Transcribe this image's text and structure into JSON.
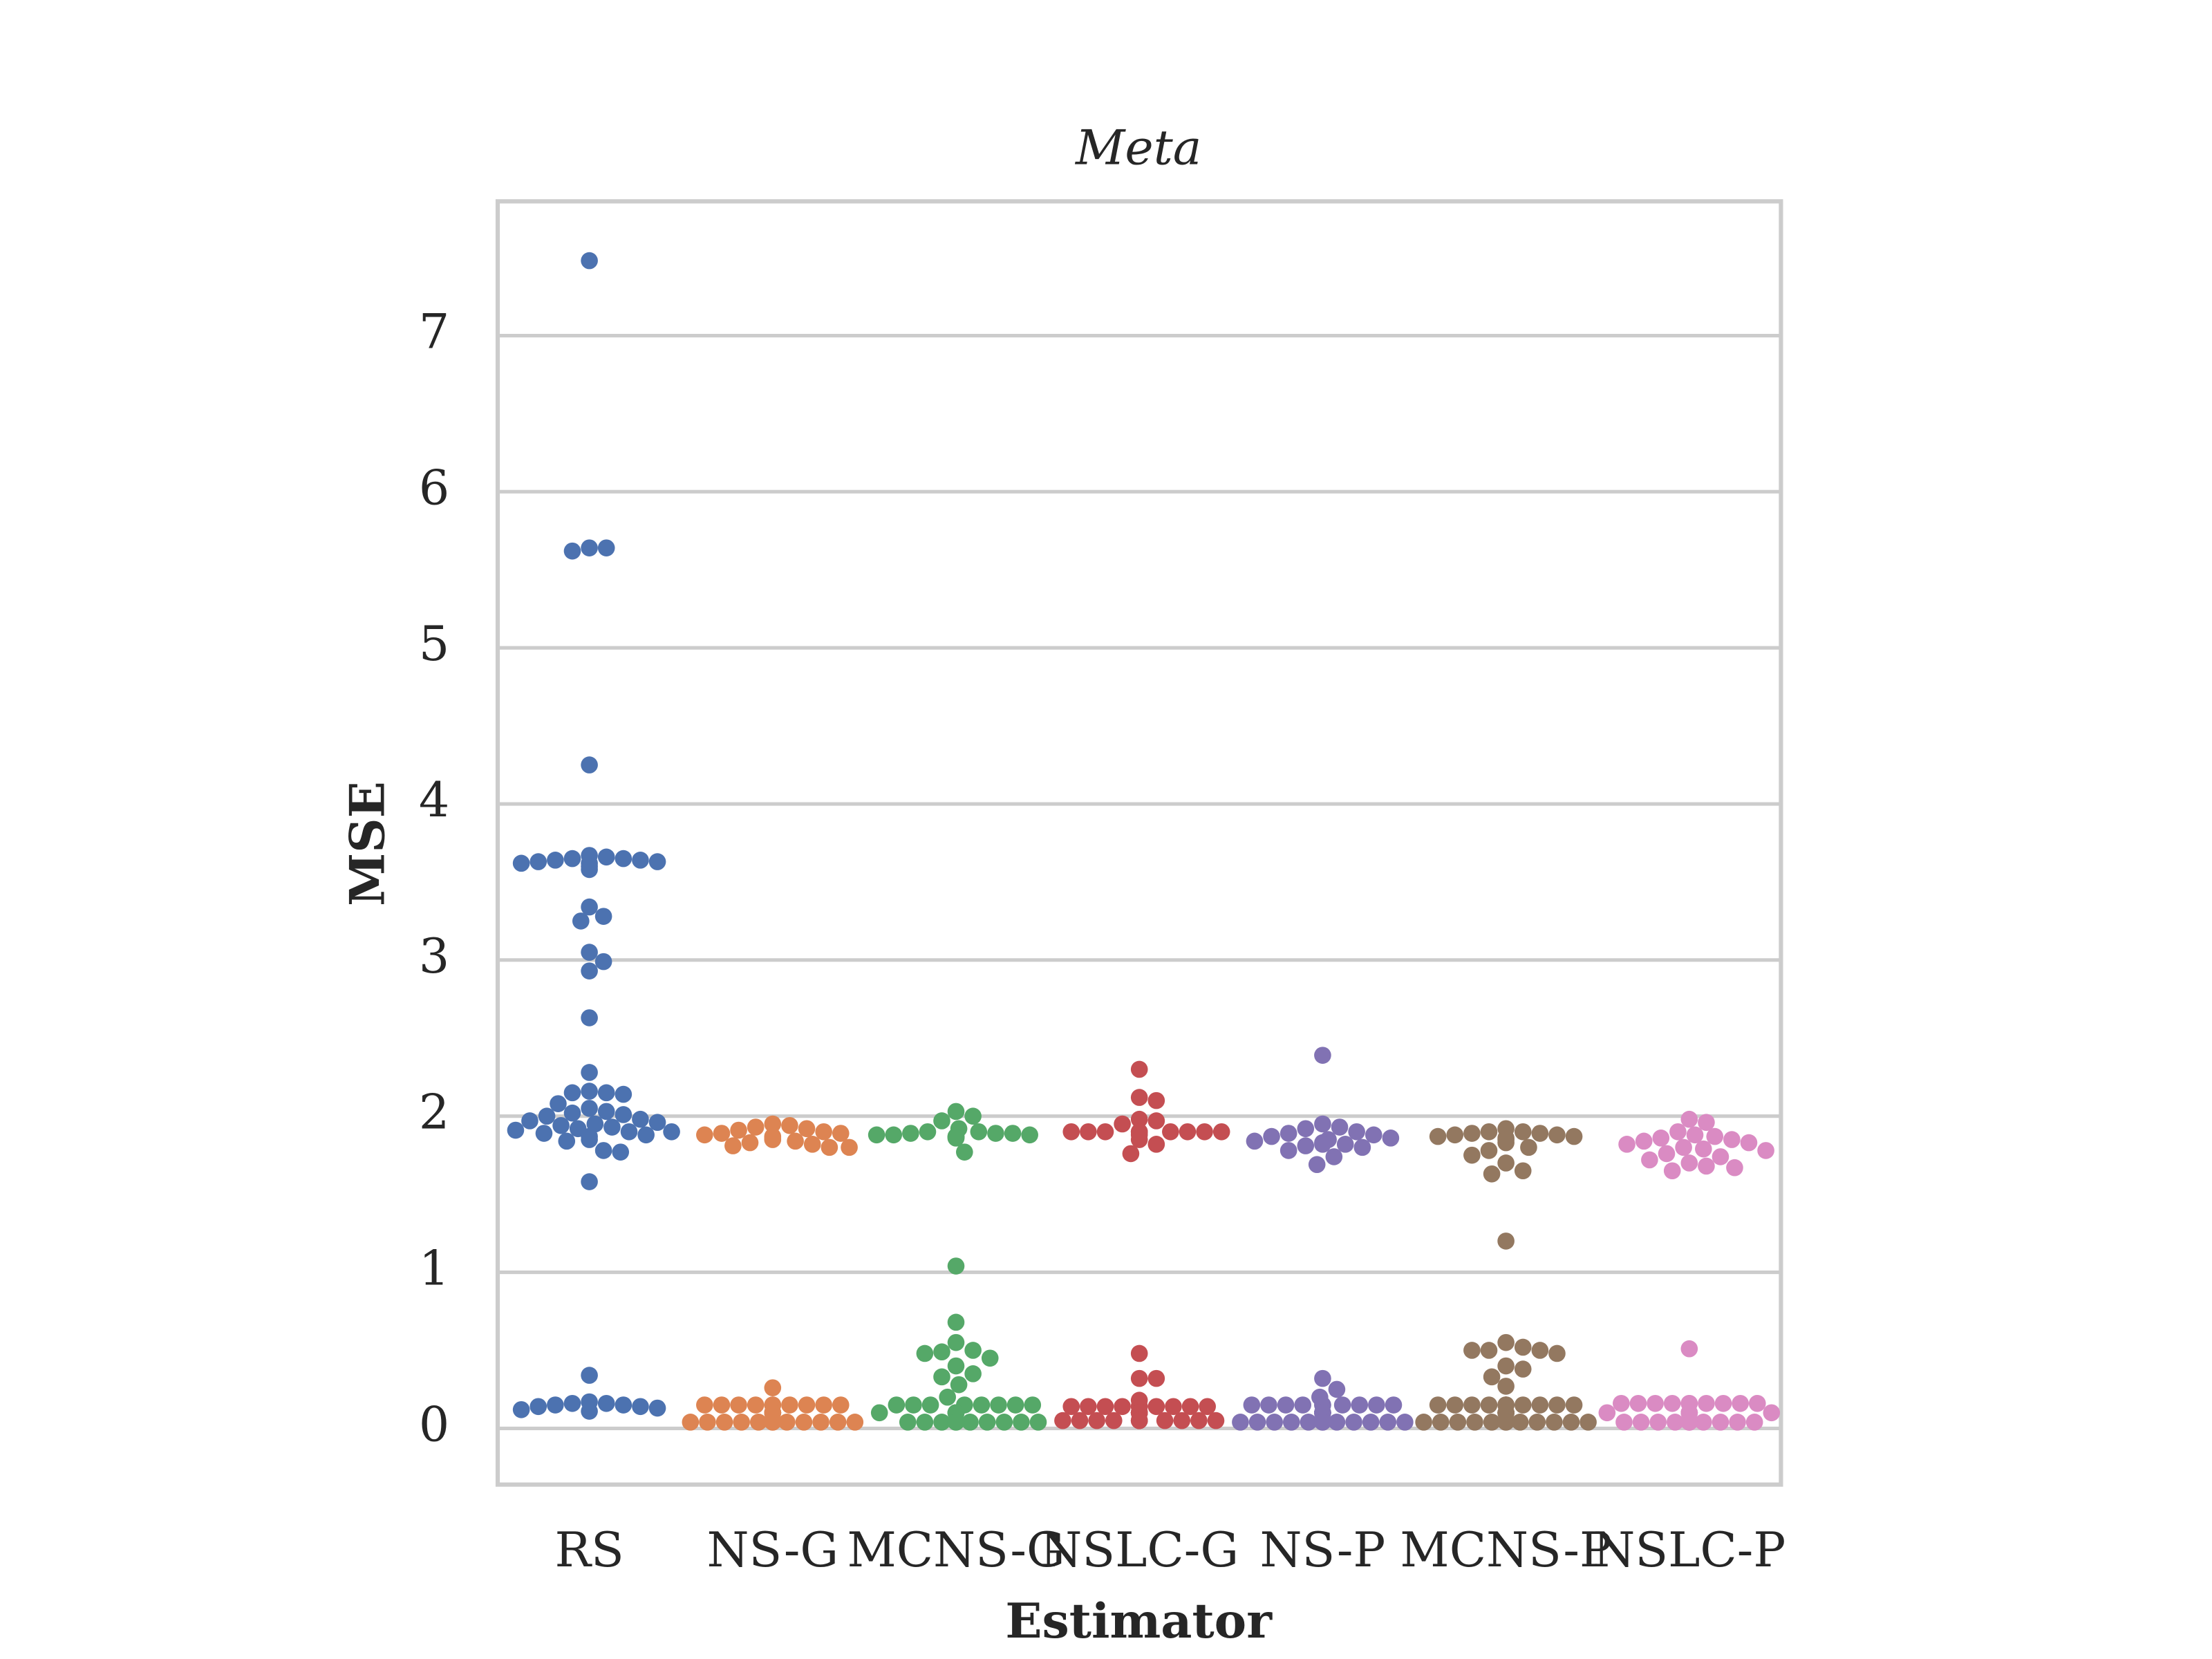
{
  "chart_data": {
    "type": "swarm",
    "title": "Meta",
    "x_label": "Estimator",
    "y_label": "MSE",
    "ylim": [
      -0.36,
      7.86
    ],
    "yticks": [
      0,
      1,
      2,
      3,
      4,
      5,
      6,
      7
    ],
    "grid": true,
    "series": [
      {
        "name": "RS",
        "color": "#4c72b0",
        "values": [
          7.48,
          5.64,
          5.62,
          5.64,
          4.25,
          3.66,
          3.65,
          3.64,
          3.63,
          3.62,
          3.6,
          3.58,
          3.62,
          3.63,
          3.64,
          3.65,
          3.67,
          3.34,
          3.28,
          3.25,
          3.05,
          2.99,
          2.93,
          2.63,
          2.28,
          2.16,
          2.15,
          2.14,
          2.15,
          2.08,
          2.05,
          2.03,
          2.02,
          2.01,
          2.0,
          1.98,
          1.97,
          1.96,
          1.95,
          1.94,
          1.93,
          1.92,
          1.91,
          1.9,
          1.9,
          1.89,
          1.88,
          1.87,
          1.85,
          1.84,
          1.78,
          1.77,
          1.58,
          0.34,
          0.16,
          0.15,
          0.14,
          0.13,
          0.12,
          0.14,
          0.15,
          0.16,
          0.17,
          0.11
        ]
      },
      {
        "name": "NS-G",
        "color": "#dd8452",
        "values": [
          1.95,
          1.94,
          1.93,
          1.92,
          1.91,
          1.9,
          1.89,
          1.89,
          1.88,
          1.87,
          1.86,
          1.85,
          1.84,
          1.83,
          1.82,
          1.81,
          1.8,
          1.8,
          0.26,
          0.15,
          0.15,
          0.15,
          0.15,
          0.15,
          0.15,
          0.15,
          0.15,
          0.15,
          0.15,
          0.1,
          0.1,
          0.1,
          0.1,
          0.1,
          0.1,
          0.1,
          0.1,
          0.1,
          0.1,
          0.04,
          0.04,
          0.04,
          0.04,
          0.04,
          0.04,
          0.04,
          0.04,
          0.04,
          0.04,
          0.04,
          0.04
        ]
      },
      {
        "name": "MCNS-G",
        "color": "#55a868",
        "values": [
          2.03,
          2.0,
          1.97,
          1.92,
          1.9,
          1.9,
          1.89,
          1.89,
          1.89,
          1.88,
          1.88,
          1.88,
          1.87,
          1.87,
          1.87,
          1.86,
          1.86,
          1.77,
          1.04,
          0.68,
          0.55,
          0.5,
          0.49,
          0.48,
          0.45,
          0.4,
          0.35,
          0.33,
          0.28,
          0.2,
          0.15,
          0.15,
          0.15,
          0.15,
          0.15,
          0.15,
          0.15,
          0.15,
          0.1,
          0.1,
          0.1,
          0.1,
          0.1,
          0.1,
          0.1,
          0.1,
          0.04,
          0.04,
          0.04,
          0.04,
          0.04,
          0.04,
          0.04,
          0.04,
          0.04,
          0.04
        ]
      },
      {
        "name": "NSLC-G",
        "color": "#c44e52",
        "values": [
          2.3,
          2.12,
          2.1,
          1.98,
          1.97,
          1.95,
          1.9,
          1.9,
          1.9,
          1.9,
          1.9,
          1.9,
          1.9,
          1.9,
          1.9,
          1.9,
          1.88,
          1.85,
          1.82,
          1.76,
          0.48,
          0.32,
          0.32,
          0.18,
          0.14,
          0.14,
          0.14,
          0.14,
          0.14,
          0.14,
          0.14,
          0.14,
          0.14,
          0.14,
          0.1,
          0.1,
          0.1,
          0.1,
          0.1,
          0.1,
          0.1,
          0.1,
          0.1,
          0.1,
          0.05,
          0.05,
          0.05,
          0.05,
          0.05,
          0.05,
          0.05,
          0.05,
          0.05,
          0.05,
          0.05,
          0.05
        ]
      },
      {
        "name": "NS-P",
        "color": "#8172b3",
        "values": [
          2.39,
          1.95,
          1.93,
          1.92,
          1.9,
          1.89,
          1.88,
          1.87,
          1.86,
          1.85,
          1.84,
          1.83,
          1.82,
          1.82,
          1.81,
          1.8,
          1.78,
          1.74,
          1.69,
          0.32,
          0.25,
          0.2,
          0.15,
          0.15,
          0.15,
          0.15,
          0.15,
          0.15,
          0.15,
          0.15,
          0.15,
          0.15,
          0.1,
          0.1,
          0.1,
          0.1,
          0.1,
          0.1,
          0.1,
          0.1,
          0.1,
          0.1,
          0.04,
          0.04,
          0.04,
          0.04,
          0.04,
          0.04,
          0.04,
          0.04,
          0.04,
          0.04,
          0.04,
          0.04
        ]
      },
      {
        "name": "MCNS-P",
        "color": "#937860",
        "values": [
          1.92,
          1.9,
          1.9,
          1.89,
          1.89,
          1.88,
          1.88,
          1.87,
          1.87,
          1.86,
          1.85,
          1.83,
          1.8,
          1.78,
          1.75,
          1.7,
          1.65,
          1.63,
          1.2,
          0.55,
          0.52,
          0.5,
          0.5,
          0.5,
          0.48,
          0.4,
          0.38,
          0.33,
          0.27,
          0.15,
          0.15,
          0.15,
          0.15,
          0.15,
          0.15,
          0.15,
          0.15,
          0.15,
          0.15,
          0.15,
          0.15,
          0.1,
          0.1,
          0.1,
          0.1,
          0.1,
          0.1,
          0.1,
          0.1,
          0.04,
          0.04,
          0.04,
          0.04,
          0.04,
          0.04,
          0.04,
          0.04,
          0.04,
          0.04,
          0.04,
          0.04
        ]
      },
      {
        "name": "NSLC-P",
        "color": "#da8bc3",
        "values": [
          1.98,
          1.96,
          1.9,
          1.88,
          1.87,
          1.86,
          1.85,
          1.84,
          1.83,
          1.82,
          1.8,
          1.79,
          1.78,
          1.76,
          1.74,
          1.72,
          1.7,
          1.68,
          1.67,
          1.65,
          0.51,
          0.16,
          0.16,
          0.16,
          0.16,
          0.16,
          0.16,
          0.16,
          0.16,
          0.16,
          0.16,
          0.1,
          0.1,
          0.1,
          0.1,
          0.1,
          0.1,
          0.1,
          0.1,
          0.1,
          0.1,
          0.04,
          0.04,
          0.04,
          0.04,
          0.04,
          0.04,
          0.04,
          0.04,
          0.04,
          0.04,
          0.04,
          0.04
        ]
      }
    ]
  }
}
